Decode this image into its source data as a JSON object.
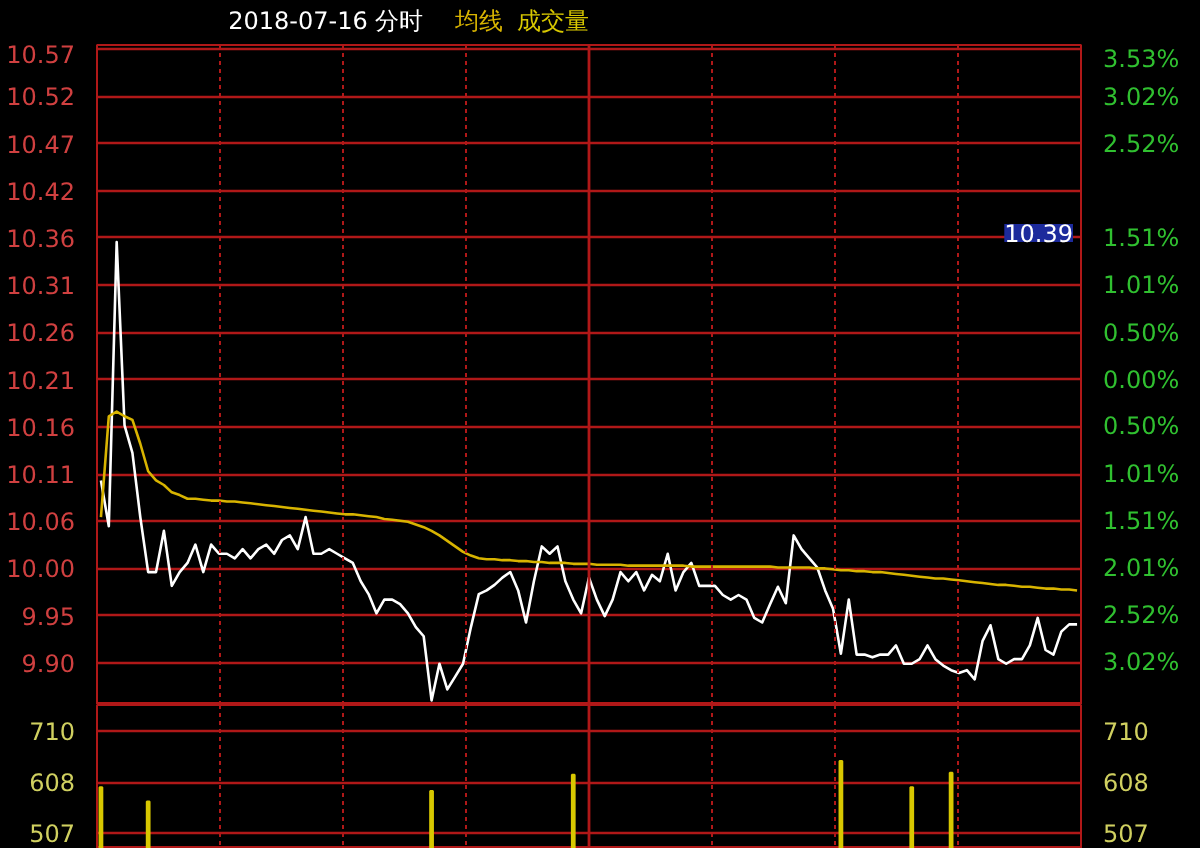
{
  "chart_data": [
    {
      "type": "line",
      "title": "2018-07-16 分时",
      "grid": true,
      "categories": [
        null,
        null,
        null,
        null,
        null,
        null,
        null,
        null,
        null,
        null,
        null,
        null,
        null,
        null,
        null,
        null,
        null,
        null,
        null,
        null,
        null,
        null,
        null,
        null,
        null,
        null,
        null,
        null,
        null,
        null,
        null,
        null,
        null,
        null,
        null,
        null,
        null,
        null,
        null,
        null,
        null,
        null,
        null,
        null,
        null,
        null,
        null,
        null,
        null,
        null,
        null,
        null,
        null,
        null,
        null,
        null,
        null,
        null,
        null,
        null,
        null,
        null,
        null,
        null,
        null,
        null,
        null,
        null,
        null,
        null,
        null,
        null,
        null,
        null,
        null,
        null,
        null,
        null,
        null,
        null,
        null,
        null,
        null,
        null,
        null,
        null,
        null,
        null,
        null,
        null,
        null,
        null,
        null,
        null,
        null,
        null,
        null,
        null,
        null,
        null,
        null,
        null,
        null,
        null,
        null,
        null,
        null,
        null,
        null,
        null,
        null,
        null,
        null,
        null,
        null,
        null,
        null,
        null,
        null,
        null,
        null,
        null,
        null,
        null,
        null
      ],
      "series": [
        {
          "color": "#ffffff",
          "values": [
            10.1,
            10.05,
            10.36,
            10.16,
            10.13,
            10.06,
            10.0,
            10.0,
            10.045,
            9.985,
            10.0,
            10.01,
            10.03,
            10.0,
            10.03,
            10.02,
            10.02,
            10.015,
            10.025,
            10.015,
            10.025,
            10.03,
            10.02,
            10.035,
            10.04,
            10.025,
            10.06,
            10.02,
            10.02,
            10.025,
            10.02,
            10.015,
            10.01,
            9.99,
            9.976,
            9.955,
            9.97,
            9.97,
            9.965,
            9.955,
            9.94,
            9.93,
            9.86,
            9.9,
            9.872,
            9.886,
            9.9,
            9.94,
            9.976,
            9.98,
            9.986,
            9.994,
            10.0,
            9.98,
            9.945,
            9.99,
            10.028,
            10.02,
            10.028,
            9.99,
            9.97,
            9.955,
            9.994,
            9.97,
            9.952,
            9.97,
            10.0,
            9.99,
            10.0,
            9.98,
            9.997,
            9.99,
            10.02,
            9.98,
            10.0,
            10.01,
            9.985,
            9.985,
            9.985,
            9.975,
            9.97,
            9.975,
            9.97,
            9.95,
            9.945,
            9.965,
            9.984,
            9.966,
            10.04,
            10.025,
            10.015,
            10.005,
            9.98,
            9.96,
            9.911,
            9.97,
            9.91,
            9.91,
            9.907,
            9.91,
            9.91,
            9.92,
            9.9,
            9.9,
            9.905,
            9.92,
            9.905,
            9.898,
            9.893,
            9.89,
            9.893,
            9.883,
            9.925,
            9.942,
            9.905,
            9.9,
            9.905,
            9.905,
            9.92,
            9.95,
            9.915,
            9.91,
            9.935,
            9.943,
            9.943
          ]
        },
        {
          "name": "均线",
          "color": "#d8b400",
          "values": [
            10.06,
            10.17,
            10.175,
            10.17,
            10.166,
            10.14,
            10.11,
            10.1,
            10.095,
            10.087,
            10.084,
            10.08,
            10.08,
            10.079,
            10.078,
            10.078,
            10.077,
            10.077,
            10.076,
            10.075,
            10.074,
            10.073,
            10.072,
            10.071,
            10.07,
            10.069,
            10.068,
            10.067,
            10.066,
            10.065,
            10.064,
            10.063,
            10.063,
            10.062,
            10.061,
            10.06,
            10.058,
            10.057,
            10.056,
            10.055,
            10.052,
            10.049,
            10.045,
            10.04,
            10.034,
            10.028,
            10.022,
            10.018,
            10.015,
            10.014,
            10.014,
            10.013,
            10.013,
            10.012,
            10.012,
            10.011,
            10.011,
            10.01,
            10.01,
            10.01,
            10.009,
            10.009,
            10.009,
            10.008,
            10.008,
            10.008,
            10.008,
            10.007,
            10.007,
            10.007,
            10.007,
            10.007,
            10.007,
            10.007,
            10.007,
            10.006,
            10.006,
            10.006,
            10.006,
            10.006,
            10.006,
            10.006,
            10.006,
            10.006,
            10.006,
            10.006,
            10.005,
            10.005,
            10.005,
            10.005,
            10.005,
            10.004,
            10.004,
            10.003,
            10.002,
            10.002,
            10.001,
            10.001,
            10.0,
            10.0,
            9.999,
            9.998,
            9.997,
            9.996,
            9.995,
            9.994,
            9.993,
            9.993,
            9.992,
            9.991,
            9.99,
            9.989,
            9.988,
            9.987,
            9.986,
            9.986,
            9.985,
            9.984,
            9.984,
            9.983,
            9.982,
            9.982,
            9.981,
            9.981,
            9.98
          ]
        }
      ],
      "ylim": [
        9.855,
        10.575
      ],
      "yticks": [
        {
          "value": 9.901,
          "label": "9.90"
        },
        {
          "value": 9.9525,
          "label": "9.95"
        },
        {
          "value": 10.004,
          "label": "10.00"
        },
        {
          "value": 10.0555,
          "label": "10.06"
        },
        {
          "value": 10.107,
          "label": "10.11"
        },
        {
          "value": 10.1585,
          "label": "10.16"
        },
        {
          "value": 10.21,
          "label": "10.21"
        },
        {
          "value": 10.2615,
          "label": "10.26"
        },
        {
          "value": 10.313,
          "label": "10.31"
        },
        {
          "value": 10.3645,
          "label": "10.36"
        },
        {
          "value": 10.416,
          "label": "10.42"
        },
        {
          "value": 10.4675,
          "label": "10.47"
        },
        {
          "value": 10.519,
          "label": "10.52"
        },
        {
          "value": 10.5705,
          "label": "10.57"
        }
      ],
      "y2lim": [
        -3.477,
        3.575
      ],
      "y2ticks": [
        {
          "value": -3.02,
          "label": "3.02%"
        },
        {
          "value": -2.52,
          "label": "2.52%"
        },
        {
          "value": -2.01,
          "label": "2.01%"
        },
        {
          "value": -1.51,
          "label": "1.51%"
        },
        {
          "value": -1.01,
          "label": "1.01%"
        },
        {
          "value": -0.5,
          "label": "0.50%"
        },
        {
          "value": 0,
          "label": "0.00%"
        },
        {
          "value": 0.5,
          "label": "0.50%"
        },
        {
          "value": 1.01,
          "label": "1.01%"
        },
        {
          "value": 1.51,
          "label": "1.51%"
        },
        {
          "value": 2.02,
          "label": null
        },
        {
          "value": 2.52,
          "label": "2.52%"
        },
        {
          "value": 3.02,
          "label": "3.02%"
        },
        {
          "value": 3.53,
          "label": "3.53%"
        }
      ],
      "annotations": [
        "10.39"
      ]
    },
    {
      "type": "bar",
      "grid": true,
      "categories": [
        null,
        null,
        null,
        null,
        null,
        null,
        null,
        null,
        null,
        null,
        null,
        null,
        null,
        null,
        null,
        null,
        null,
        null,
        null,
        null,
        null,
        null,
        null,
        null,
        null,
        null,
        null,
        null,
        null,
        null,
        null,
        null,
        null,
        null,
        null,
        null,
        null,
        null,
        null,
        null,
        null,
        null,
        null,
        null,
        null,
        null,
        null,
        null,
        null,
        null,
        null,
        null,
        null,
        null,
        null,
        null,
        null,
        null,
        null,
        null,
        null,
        null,
        null,
        null,
        null,
        null,
        null,
        null,
        null,
        null,
        null,
        null,
        null,
        null,
        null,
        null,
        null,
        null,
        null,
        null,
        null,
        null,
        null,
        null,
        null,
        null,
        null,
        null,
        null,
        null,
        null,
        null,
        null,
        null,
        null,
        null,
        null,
        null,
        null,
        null,
        null,
        null,
        null,
        null,
        null,
        null,
        null,
        null,
        null,
        null,
        null,
        null,
        null,
        null,
        null,
        null,
        null,
        null,
        null,
        null,
        null,
        null,
        null,
        null,
        null
      ],
      "series": [
        {
          "name": "成交量",
          "color": "#d8c800",
          "values": [
            598,
            null,
            null,
            null,
            null,
            null,
            570,
            null,
            null,
            null,
            null,
            null,
            null,
            null,
            null,
            null,
            null,
            null,
            null,
            null,
            null,
            null,
            null,
            null,
            null,
            null,
            null,
            null,
            null,
            null,
            null,
            null,
            null,
            null,
            null,
            null,
            null,
            null,
            null,
            null,
            null,
            null,
            591,
            null,
            null,
            null,
            null,
            null,
            null,
            null,
            null,
            null,
            null,
            null,
            null,
            null,
            null,
            null,
            null,
            null,
            623,
            null,
            null,
            null,
            null,
            null,
            null,
            null,
            null,
            null,
            null,
            null,
            null,
            null,
            null,
            null,
            null,
            null,
            null,
            null,
            null,
            null,
            null,
            null,
            null,
            null,
            null,
            null,
            null,
            null,
            null,
            null,
            null,
            null,
            650,
            null,
            null,
            null,
            null,
            null,
            null,
            null,
            null,
            598,
            null,
            null,
            null,
            null,
            627,
            null,
            null,
            null,
            null,
            null,
            null,
            null,
            null,
            null,
            null,
            null,
            null,
            null,
            null,
            null,
            null
          ]
        }
      ],
      "ylim": [
        476,
        761
      ],
      "yticks": [
        507,
        608,
        710
      ],
      "y2lim": [
        476,
        761
      ],
      "y2ticks": [
        507,
        608,
        710
      ]
    }
  ]
}
